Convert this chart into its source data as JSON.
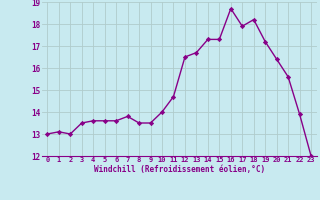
{
  "x": [
    0,
    1,
    2,
    3,
    4,
    5,
    6,
    7,
    8,
    9,
    10,
    11,
    12,
    13,
    14,
    15,
    16,
    17,
    18,
    19,
    20,
    21,
    22,
    23
  ],
  "y": [
    13.0,
    13.1,
    13.0,
    13.5,
    13.6,
    13.6,
    13.6,
    13.8,
    13.5,
    13.5,
    14.0,
    14.7,
    16.5,
    16.7,
    17.3,
    17.3,
    18.7,
    17.9,
    18.2,
    17.2,
    16.4,
    15.6,
    13.9,
    12.0
  ],
  "line_color": "#880088",
  "marker": "D",
  "marker_size": 2.2,
  "bg_color": "#c8eaf0",
  "grid_color": "#b0cccc",
  "xlabel": "Windchill (Refroidissement éolien,°C)",
  "xlabel_color": "#880088",
  "tick_color": "#880088",
  "ylim": [
    12,
    19
  ],
  "yticks": [
    12,
    13,
    14,
    15,
    16,
    17,
    18,
    19
  ],
  "xticks": [
    0,
    1,
    2,
    3,
    4,
    5,
    6,
    7,
    8,
    9,
    10,
    11,
    12,
    13,
    14,
    15,
    16,
    17,
    18,
    19,
    20,
    21,
    22,
    23
  ],
  "line_width": 1.0
}
